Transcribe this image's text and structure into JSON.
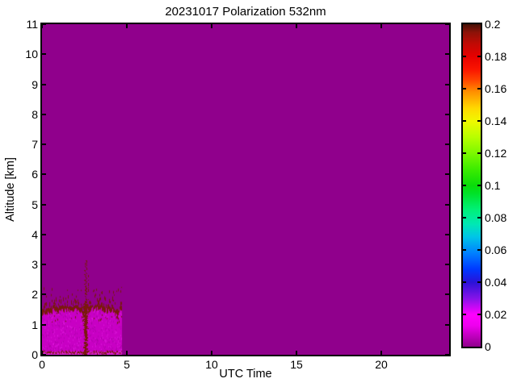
{
  "chart_data": {
    "type": "heatmap",
    "title": "20231017 Polarization 532nm",
    "xlabel": "UTC Time",
    "ylabel": "Altitude [km]",
    "xlim": [
      0,
      24
    ],
    "ylim": [
      0,
      11
    ],
    "x_ticks": [
      0,
      5,
      10,
      15,
      20
    ],
    "x_tick_labels": [
      "0",
      "5",
      "10",
      "15",
      "20"
    ],
    "y_ticks": [
      0,
      1,
      2,
      3,
      4,
      5,
      6,
      7,
      8,
      9,
      10,
      11
    ],
    "y_tick_labels": [
      "0",
      "1",
      "2",
      "3",
      "4",
      "5",
      "6",
      "7",
      "8",
      "9",
      "10",
      "11"
    ],
    "grid": false,
    "legend": "none",
    "background_value": 0,
    "background_value_color": "#90008C",
    "colorbar": {
      "min": 0,
      "max": 0.2,
      "ticks": [
        0,
        0.02,
        0.04,
        0.06,
        0.08,
        0.1,
        0.12,
        0.14,
        0.16,
        0.18,
        0.2
      ],
      "tick_labels": [
        "0",
        "0.02",
        "0.04",
        "0.06",
        "0.08",
        "0.1",
        "0.12",
        "0.14",
        "0.16",
        "0.18",
        "0.2"
      ],
      "gradient_stops": [
        {
          "v": 0.0,
          "color": "#90008C"
        },
        {
          "v": 0.013,
          "color": "#EE00EE"
        },
        {
          "v": 0.02,
          "color": "#FF00FF"
        },
        {
          "v": 0.03,
          "color": "#8513E8"
        },
        {
          "v": 0.04,
          "color": "#2A12D8"
        },
        {
          "v": 0.048,
          "color": "#0038FF"
        },
        {
          "v": 0.058,
          "color": "#0080FF"
        },
        {
          "v": 0.068,
          "color": "#00C4E8"
        },
        {
          "v": 0.076,
          "color": "#00E8B4"
        },
        {
          "v": 0.085,
          "color": "#00F078"
        },
        {
          "v": 0.095,
          "color": "#00E228"
        },
        {
          "v": 0.1,
          "color": "#0ADC0A"
        },
        {
          "v": 0.11,
          "color": "#3CEC00"
        },
        {
          "v": 0.12,
          "color": "#7CF800"
        },
        {
          "v": 0.13,
          "color": "#B8FF00"
        },
        {
          "v": 0.14,
          "color": "#F0F800"
        },
        {
          "v": 0.148,
          "color": "#FFD800"
        },
        {
          "v": 0.158,
          "color": "#FF9000"
        },
        {
          "v": 0.165,
          "color": "#FF4800"
        },
        {
          "v": 0.172,
          "color": "#FA1400"
        },
        {
          "v": 0.18,
          "color": "#E60000"
        },
        {
          "v": 0.188,
          "color": "#C00A04"
        },
        {
          "v": 0.195,
          "color": "#8C1208"
        },
        {
          "v": 0.2,
          "color": "#451006"
        }
      ]
    },
    "features": {
      "boundary_layer": {
        "time_range_utc": [
          0,
          4.7
        ],
        "mean_top_km": 1.42,
        "top_jitter_km": 0.2,
        "speckle_max_km": 1.85,
        "fill_color": "#C800C4",
        "speckle_color": "#7A190C"
      },
      "surface_line": {
        "altitude_km": 0.12,
        "color": "#7A190C"
      },
      "spike": {
        "time_utc": 2.55,
        "top_km": 3.15,
        "color": "#7A190C"
      }
    }
  }
}
